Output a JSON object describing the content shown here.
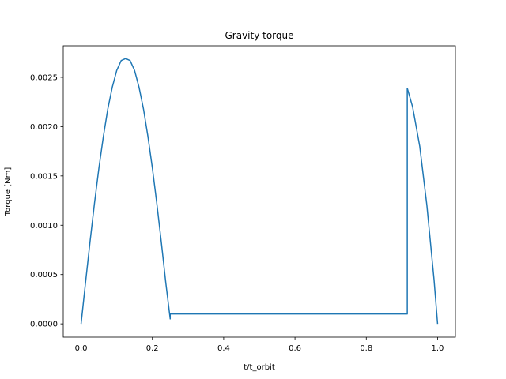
{
  "chart_data": {
    "type": "line",
    "title": "Gravity torque",
    "xlabel": "t/t_orbit",
    "ylabel": "Torque [Nm]",
    "xlim": [
      -0.05,
      1.05
    ],
    "ylim": [
      -0.000135,
      0.00282
    ],
    "xticks": [
      0.0,
      0.2,
      0.4,
      0.6,
      0.8,
      1.0
    ],
    "xtick_labels": [
      "0.0",
      "0.2",
      "0.4",
      "0.6",
      "0.8",
      "1.0"
    ],
    "yticks": [
      0.0,
      0.0005,
      0.001,
      0.0015,
      0.002,
      0.0025
    ],
    "ytick_labels": [
      "0.0000",
      "0.0005",
      "0.0010",
      "0.0015",
      "0.0020",
      "0.0025"
    ],
    "grid": false,
    "line_color": "#1f77b4",
    "series": [
      {
        "x": [
          0.0,
          0.0125,
          0.025,
          0.0375,
          0.05,
          0.0625,
          0.075,
          0.0875,
          0.1,
          0.1125,
          0.125,
          0.1375,
          0.15,
          0.1625,
          0.175,
          0.1875,
          0.2,
          0.2125,
          0.225,
          0.2375,
          0.25,
          0.25,
          0.915,
          0.915,
          0.93,
          0.95,
          0.97,
          0.99,
          1.0
        ],
        "y": [
          0.0,
          0.00042,
          0.00083,
          0.00122,
          0.00158,
          0.0019,
          0.00218,
          0.0024,
          0.00257,
          0.00267,
          0.00269,
          0.00267,
          0.00257,
          0.0024,
          0.00218,
          0.0019,
          0.00158,
          0.00122,
          0.00083,
          0.00042,
          5e-05,
          0.0001,
          0.0001,
          0.00239,
          0.0022,
          0.0018,
          0.0012,
          0.00045,
          0.0
        ]
      }
    ]
  }
}
